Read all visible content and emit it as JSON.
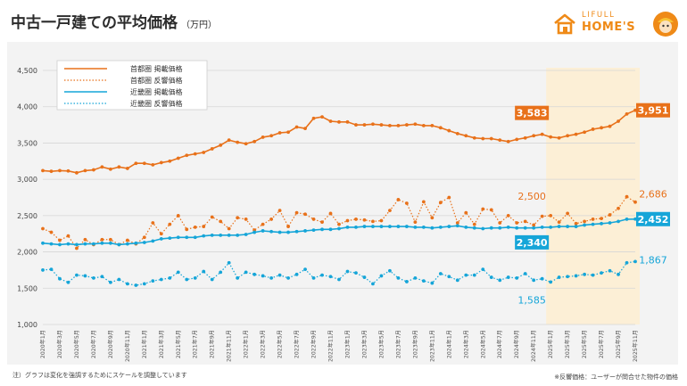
{
  "header": {
    "title": "中古一戸建ての平均価格",
    "unit": "（万円）"
  },
  "brand": {
    "line1": "LIFULL",
    "line2": "HOME'S",
    "color": "#ef8a17"
  },
  "footnote_left": "注）グラフは変化を強調するためにスケールを調整しています",
  "footnote_right": "※反響価格：ユーザーが問合せた物件の価格",
  "chart_data": {
    "type": "line",
    "ylim": [
      1000,
      4500
    ],
    "yticks": [
      "1,000",
      "1,500",
      "2,000",
      "2,500",
      "3,000",
      "3,500",
      "4,000",
      "4,500"
    ],
    "grid": true,
    "legend_position": "top-left",
    "highlight": {
      "from": "2025年1月",
      "to": "2025年11月",
      "color": "#fcefd6"
    },
    "x": [
      "2020年1月",
      "2020年2月",
      "2020年3月",
      "2020年4月",
      "2020年5月",
      "2020年6月",
      "2020年7月",
      "2020年8月",
      "2020年9月",
      "2020年10月",
      "2020年11月",
      "2020年12月",
      "2021年1月",
      "2021年2月",
      "2021年3月",
      "2021年4月",
      "2021年5月",
      "2021年6月",
      "2021年7月",
      "2021年8月",
      "2021年9月",
      "2021年10月",
      "2021年11月",
      "2021年12月",
      "2022年1月",
      "2022年2月",
      "2022年3月",
      "2022年4月",
      "2022年5月",
      "2022年6月",
      "2022年7月",
      "2022年8月",
      "2022年9月",
      "2022年10月",
      "2022年11月",
      "2022年12月",
      "2023年1月",
      "2023年2月",
      "2023年3月",
      "2023年4月",
      "2023年5月",
      "2023年6月",
      "2023年7月",
      "2023年8月",
      "2023年9月",
      "2023年10月",
      "2023年11月",
      "2023年12月",
      "2024年1月",
      "2024年2月",
      "2024年3月",
      "2024年4月",
      "2024年5月",
      "2024年6月",
      "2024年7月",
      "2024年8月",
      "2024年9月",
      "2024年10月",
      "2024年11月",
      "2024年12月",
      "2025年1月",
      "2025年2月",
      "2025年3月",
      "2025年4月",
      "2025年5月",
      "2025年6月",
      "2025年7月",
      "2025年8月",
      "2025年9月",
      "2025年10月",
      "2025年11月"
    ],
    "x_tick_labels": [
      "2020年1月",
      "2020年3月",
      "2020年5月",
      "2020年7月",
      "2020年9月",
      "2020年11月",
      "2021年1月",
      "2021年3月",
      "2021年5月",
      "2021年7月",
      "2021年9月",
      "2021年11月",
      "2022年1月",
      "2022年3月",
      "2022年5月",
      "2022年7月",
      "2022年9月",
      "2022年11月",
      "2023年1月",
      "2023年3月",
      "2023年5月",
      "2023年7月",
      "2023年9月",
      "2023年11月",
      "2024年1月",
      "2024年3月",
      "2024年5月",
      "2024年7月",
      "2024年9月",
      "2024年11月",
      "2025年1月",
      "2025年3月",
      "2025年5月",
      "2025年7月",
      "2025年9月",
      "2025年11月"
    ],
    "series": [
      {
        "name": "首都圏 掲載価格",
        "color": "#e8711a",
        "style": "solid",
        "values": [
          3120,
          3110,
          3120,
          3115,
          3090,
          3120,
          3130,
          3170,
          3140,
          3170,
          3150,
          3220,
          3220,
          3200,
          3230,
          3250,
          3290,
          3330,
          3350,
          3370,
          3420,
          3470,
          3540,
          3510,
          3490,
          3520,
          3580,
          3600,
          3640,
          3650,
          3720,
          3700,
          3840,
          3860,
          3800,
          3790,
          3790,
          3750,
          3750,
          3760,
          3750,
          3740,
          3740,
          3750,
          3760,
          3740,
          3740,
          3710,
          3670,
          3630,
          3600,
          3570,
          3560,
          3560,
          3540,
          3520,
          3550,
          3570,
          3600,
          3620,
          3583,
          3570,
          3600,
          3620,
          3650,
          3690,
          3710,
          3730,
          3800,
          3900,
          3951
        ]
      },
      {
        "name": "首都圏 反響価格",
        "color": "#e8711a",
        "style": "dotted",
        "values": [
          2320,
          2270,
          2160,
          2220,
          2050,
          2170,
          2100,
          2170,
          2170,
          2100,
          2160,
          2110,
          2200,
          2400,
          2250,
          2380,
          2500,
          2310,
          2340,
          2350,
          2480,
          2420,
          2320,
          2470,
          2450,
          2300,
          2380,
          2450,
          2570,
          2350,
          2540,
          2520,
          2450,
          2410,
          2530,
          2380,
          2430,
          2450,
          2440,
          2420,
          2430,
          2570,
          2720,
          2670,
          2410,
          2690,
          2470,
          2680,
          2750,
          2400,
          2540,
          2380,
          2590,
          2580,
          2400,
          2500,
          2400,
          2420,
          2370,
          2490,
          2500,
          2410,
          2530,
          2390,
          2420,
          2450,
          2460,
          2510,
          2600,
          2760,
          2686
        ]
      },
      {
        "name": "近畿圏 掲載価格",
        "color": "#15a5d8",
        "style": "solid",
        "values": [
          2120,
          2110,
          2100,
          2110,
          2100,
          2110,
          2110,
          2120,
          2120,
          2100,
          2110,
          2120,
          2130,
          2150,
          2180,
          2190,
          2200,
          2200,
          2200,
          2220,
          2230,
          2230,
          2230,
          2230,
          2240,
          2270,
          2290,
          2280,
          2270,
          2270,
          2280,
          2290,
          2300,
          2310,
          2310,
          2320,
          2340,
          2340,
          2350,
          2350,
          2350,
          2350,
          2350,
          2350,
          2340,
          2340,
          2330,
          2340,
          2350,
          2360,
          2340,
          2330,
          2320,
          2330,
          2330,
          2340,
          2330,
          2330,
          2330,
          2340,
          2340,
          2350,
          2350,
          2350,
          2370,
          2380,
          2390,
          2400,
          2420,
          2450,
          2452
        ]
      },
      {
        "name": "近畿圏 反響価格",
        "color": "#15a5d8",
        "style": "dotted",
        "values": [
          1750,
          1760,
          1630,
          1580,
          1680,
          1670,
          1640,
          1660,
          1580,
          1620,
          1560,
          1540,
          1560,
          1600,
          1620,
          1640,
          1720,
          1620,
          1640,
          1730,
          1620,
          1720,
          1850,
          1640,
          1720,
          1690,
          1670,
          1640,
          1680,
          1640,
          1690,
          1760,
          1640,
          1680,
          1660,
          1620,
          1730,
          1710,
          1650,
          1560,
          1670,
          1740,
          1640,
          1590,
          1640,
          1600,
          1570,
          1700,
          1660,
          1610,
          1680,
          1680,
          1760,
          1650,
          1610,
          1650,
          1640,
          1700,
          1610,
          1630,
          1585,
          1650,
          1660,
          1670,
          1690,
          1680,
          1710,
          1740,
          1690,
          1850,
          1867
        ]
      }
    ],
    "annotations": [
      {
        "text": "3,583",
        "series": 0,
        "at": "2025年1月",
        "boxed": true
      },
      {
        "text": "3,951",
        "series": 0,
        "at": "2025年11月",
        "boxed": true
      },
      {
        "text": "2,500",
        "series": 1,
        "at": "2025年1月",
        "boxed": false
      },
      {
        "text": "2,686",
        "series": 1,
        "at": "2025年11月",
        "boxed": false
      },
      {
        "text": "2,340",
        "series": 2,
        "at": "2025年1月",
        "boxed": true
      },
      {
        "text": "2,452",
        "series": 2,
        "at": "2025年11月",
        "boxed": true
      },
      {
        "text": "1,585",
        "series": 3,
        "at": "2025年1月",
        "boxed": false
      },
      {
        "text": "1,867",
        "series": 3,
        "at": "2025年11月",
        "boxed": false
      }
    ]
  }
}
